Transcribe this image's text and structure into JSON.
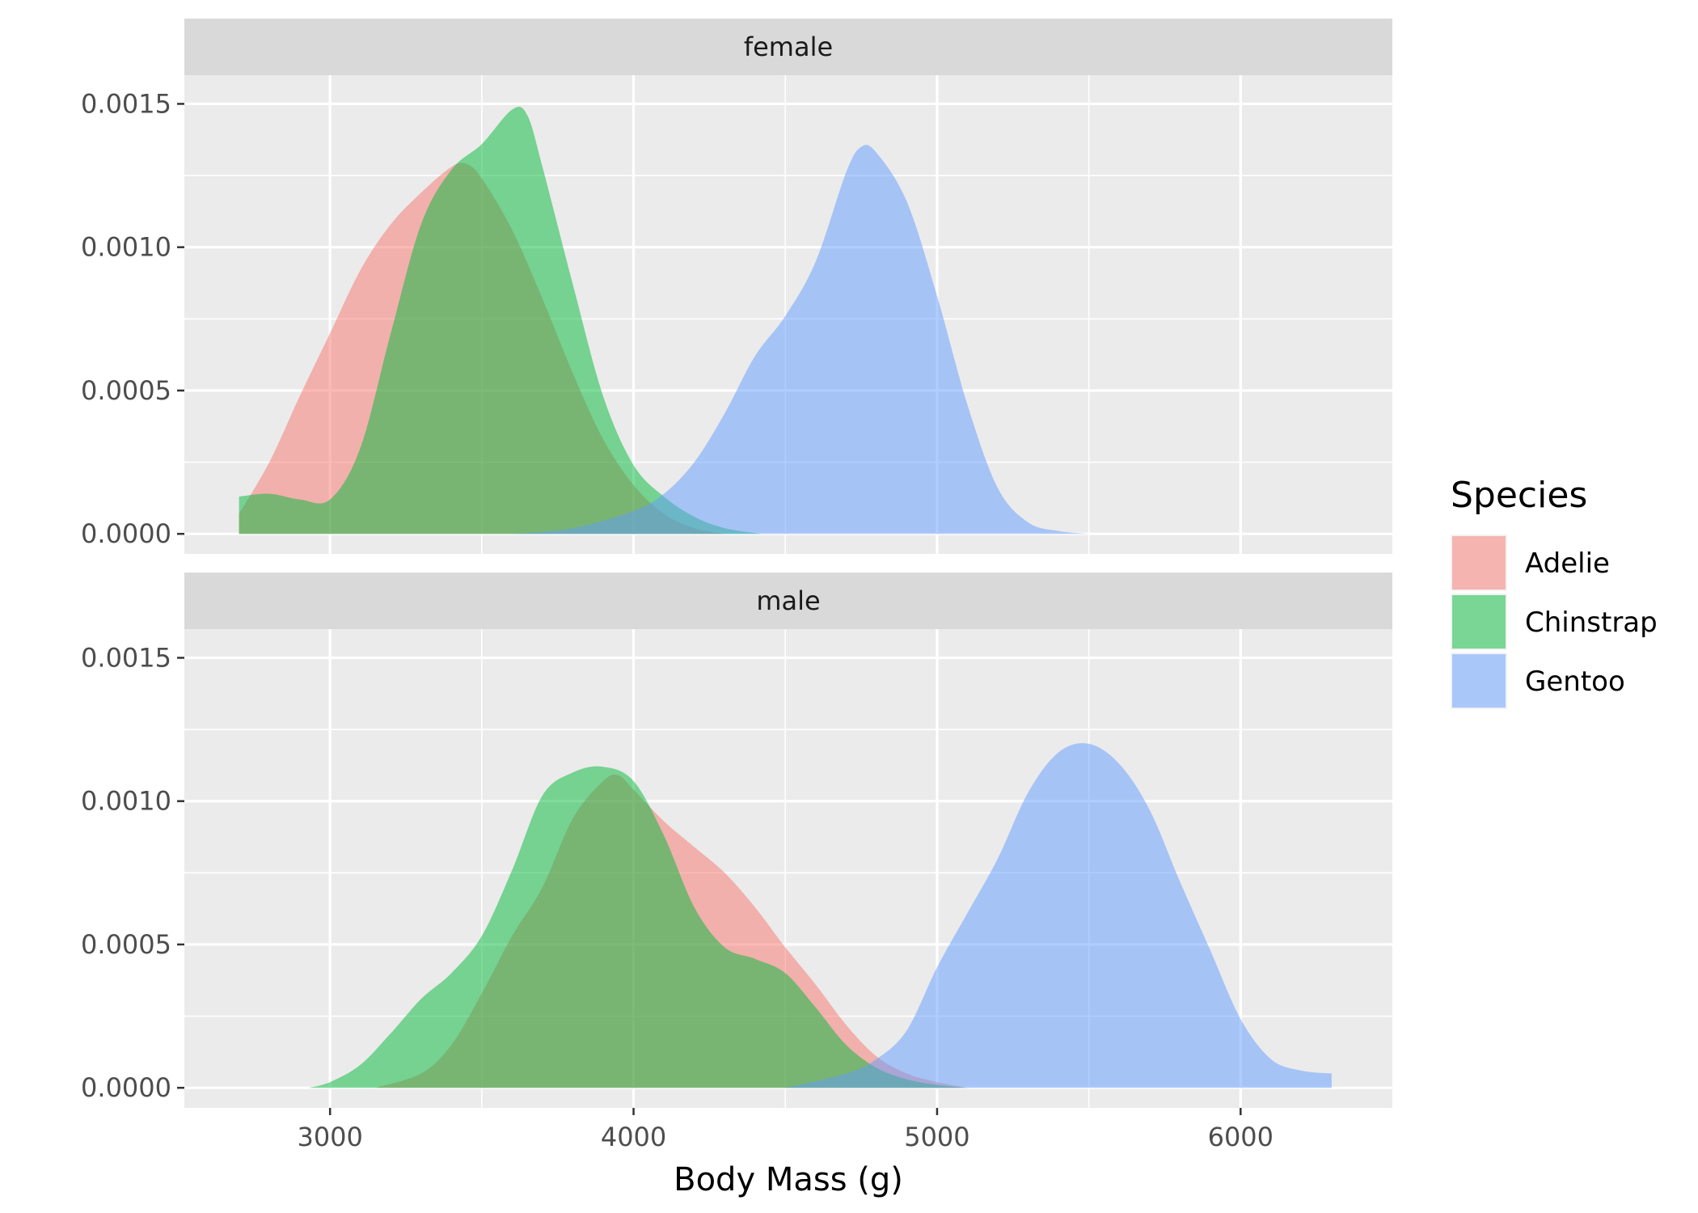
{
  "chart_data": {
    "type": "area",
    "subtype": "density",
    "title": "",
    "xlabel": "Body Mass (g)",
    "ylabel": "",
    "xlim": [
      2520,
      6500
    ],
    "ylim": [
      -7e-05,
      0.0016
    ],
    "x_ticks": [
      3000,
      4000,
      5000,
      6000
    ],
    "x_tick_labels": [
      "3000",
      "4000",
      "5000",
      "6000"
    ],
    "y_ticks": [
      0.0,
      0.0005,
      0.001,
      0.0015
    ],
    "y_tick_labels": [
      "0.0000",
      "0.0005",
      "0.0010",
      "0.0015"
    ],
    "grid": true,
    "legend": {
      "title": "Species",
      "placement": "right",
      "entries": [
        "Adelie",
        "Chinstrap",
        "Gentoo"
      ]
    },
    "colors": {
      "Adelie": "#F8766D",
      "Chinstrap": "#00BA38",
      "Gentoo": "#619CFF",
      "panel_bg": "#EBEBEB",
      "strip_bg": "#D9D9D9",
      "grid": "#FFFFFF"
    },
    "fill_alpha": 0.5,
    "facets": [
      {
        "label": "female",
        "series": [
          {
            "name": "Adelie",
            "points": [
              [
                2700,
                7e-05
              ],
              [
                2800,
                0.00025
              ],
              [
                2900,
                0.00048
              ],
              [
                3000,
                0.0007
              ],
              [
                3100,
                0.00092
              ],
              [
                3200,
                0.00108
              ],
              [
                3300,
                0.00119
              ],
              [
                3400,
                0.00128
              ],
              [
                3450,
                0.00129
              ],
              [
                3500,
                0.00124
              ],
              [
                3600,
                0.00106
              ],
              [
                3700,
                0.00082
              ],
              [
                3800,
                0.00056
              ],
              [
                3900,
                0.00033
              ],
              [
                4000,
                0.00017
              ],
              [
                4100,
                7e-05
              ],
              [
                4200,
                2e-05
              ],
              [
                4300,
                0.0
              ]
            ]
          },
          {
            "name": "Chinstrap",
            "points": [
              [
                2700,
                0.00013
              ],
              [
                2800,
                0.00014
              ],
              [
                2900,
                0.00012
              ],
              [
                3000,
                0.00012
              ],
              [
                3100,
                0.0003
              ],
              [
                3200,
                0.0007
              ],
              [
                3300,
                0.00108
              ],
              [
                3400,
                0.00127
              ],
              [
                3500,
                0.00136
              ],
              [
                3600,
                0.00148
              ],
              [
                3650,
                0.00146
              ],
              [
                3700,
                0.00128
              ],
              [
                3800,
                0.00087
              ],
              [
                3900,
                0.00048
              ],
              [
                4000,
                0.00024
              ],
              [
                4100,
                0.00013
              ],
              [
                4200,
                6e-05
              ],
              [
                4300,
                2e-05
              ],
              [
                4420,
                0.0
              ]
            ]
          },
          {
            "name": "Gentoo",
            "points": [
              [
                3600,
                0.0
              ],
              [
                3800,
                2e-05
              ],
              [
                4000,
                8e-05
              ],
              [
                4100,
                0.00014
              ],
              [
                4200,
                0.00025
              ],
              [
                4300,
                0.00042
              ],
              [
                4400,
                0.00062
              ],
              [
                4500,
                0.00076
              ],
              [
                4600,
                0.00095
              ],
              [
                4700,
                0.00126
              ],
              [
                4750,
                0.00135
              ],
              [
                4800,
                0.00133
              ],
              [
                4900,
                0.00116
              ],
              [
                5000,
                0.00083
              ],
              [
                5100,
                0.00045
              ],
              [
                5200,
                0.00016
              ],
              [
                5300,
                4e-05
              ],
              [
                5400,
                1e-05
              ],
              [
                5500,
                0.0
              ]
            ]
          }
        ]
      },
      {
        "label": "male",
        "series": [
          {
            "name": "Adelie",
            "points": [
              [
                3150,
                0.0
              ],
              [
                3300,
                5e-05
              ],
              [
                3400,
                0.00015
              ],
              [
                3500,
                0.00033
              ],
              [
                3600,
                0.00053
              ],
              [
                3700,
                0.0007
              ],
              [
                3800,
                0.00094
              ],
              [
                3900,
                0.00107
              ],
              [
                3950,
                0.00109
              ],
              [
                4000,
                0.00104
              ],
              [
                4100,
                0.00093
              ],
              [
                4200,
                0.00084
              ],
              [
                4300,
                0.00075
              ],
              [
                4400,
                0.00063
              ],
              [
                4500,
                0.00049
              ],
              [
                4600,
                0.00036
              ],
              [
                4700,
                0.00022
              ],
              [
                4800,
                0.00011
              ],
              [
                4900,
                5e-05
              ],
              [
                5000,
                2e-05
              ],
              [
                5100,
                0.0
              ]
            ]
          },
          {
            "name": "Chinstrap",
            "points": [
              [
                2930,
                0.0
              ],
              [
                3000,
                2e-05
              ],
              [
                3100,
                8e-05
              ],
              [
                3200,
                0.00019
              ],
              [
                3300,
                0.00031
              ],
              [
                3400,
                0.0004
              ],
              [
                3500,
                0.00053
              ],
              [
                3600,
                0.00076
              ],
              [
                3700,
                0.00102
              ],
              [
                3800,
                0.0011
              ],
              [
                3900,
                0.00112
              ],
              [
                4000,
                0.00107
              ],
              [
                4100,
                0.00088
              ],
              [
                4200,
                0.00063
              ],
              [
                4300,
                0.00049
              ],
              [
                4400,
                0.00045
              ],
              [
                4500,
                0.0004
              ],
              [
                4600,
                0.00028
              ],
              [
                4700,
                0.00015
              ],
              [
                4800,
                7e-05
              ],
              [
                4900,
                3e-05
              ],
              [
                5000,
                1e-05
              ],
              [
                5100,
                0.0
              ]
            ]
          },
          {
            "name": "Gentoo",
            "points": [
              [
                4500,
                0.0
              ],
              [
                4700,
                5e-05
              ],
              [
                4800,
                0.0001
              ],
              [
                4900,
                0.0002
              ],
              [
                5000,
                0.00042
              ],
              [
                5100,
                0.00061
              ],
              [
                5200,
                0.0008
              ],
              [
                5300,
                0.00103
              ],
              [
                5400,
                0.00117
              ],
              [
                5500,
                0.0012
              ],
              [
                5600,
                0.00113
              ],
              [
                5700,
                0.00097
              ],
              [
                5800,
                0.00072
              ],
              [
                5900,
                0.00048
              ],
              [
                6000,
                0.00024
              ],
              [
                6100,
                0.0001
              ],
              [
                6200,
                6e-05
              ],
              [
                6300,
                5e-05
              ]
            ]
          }
        ]
      }
    ]
  }
}
